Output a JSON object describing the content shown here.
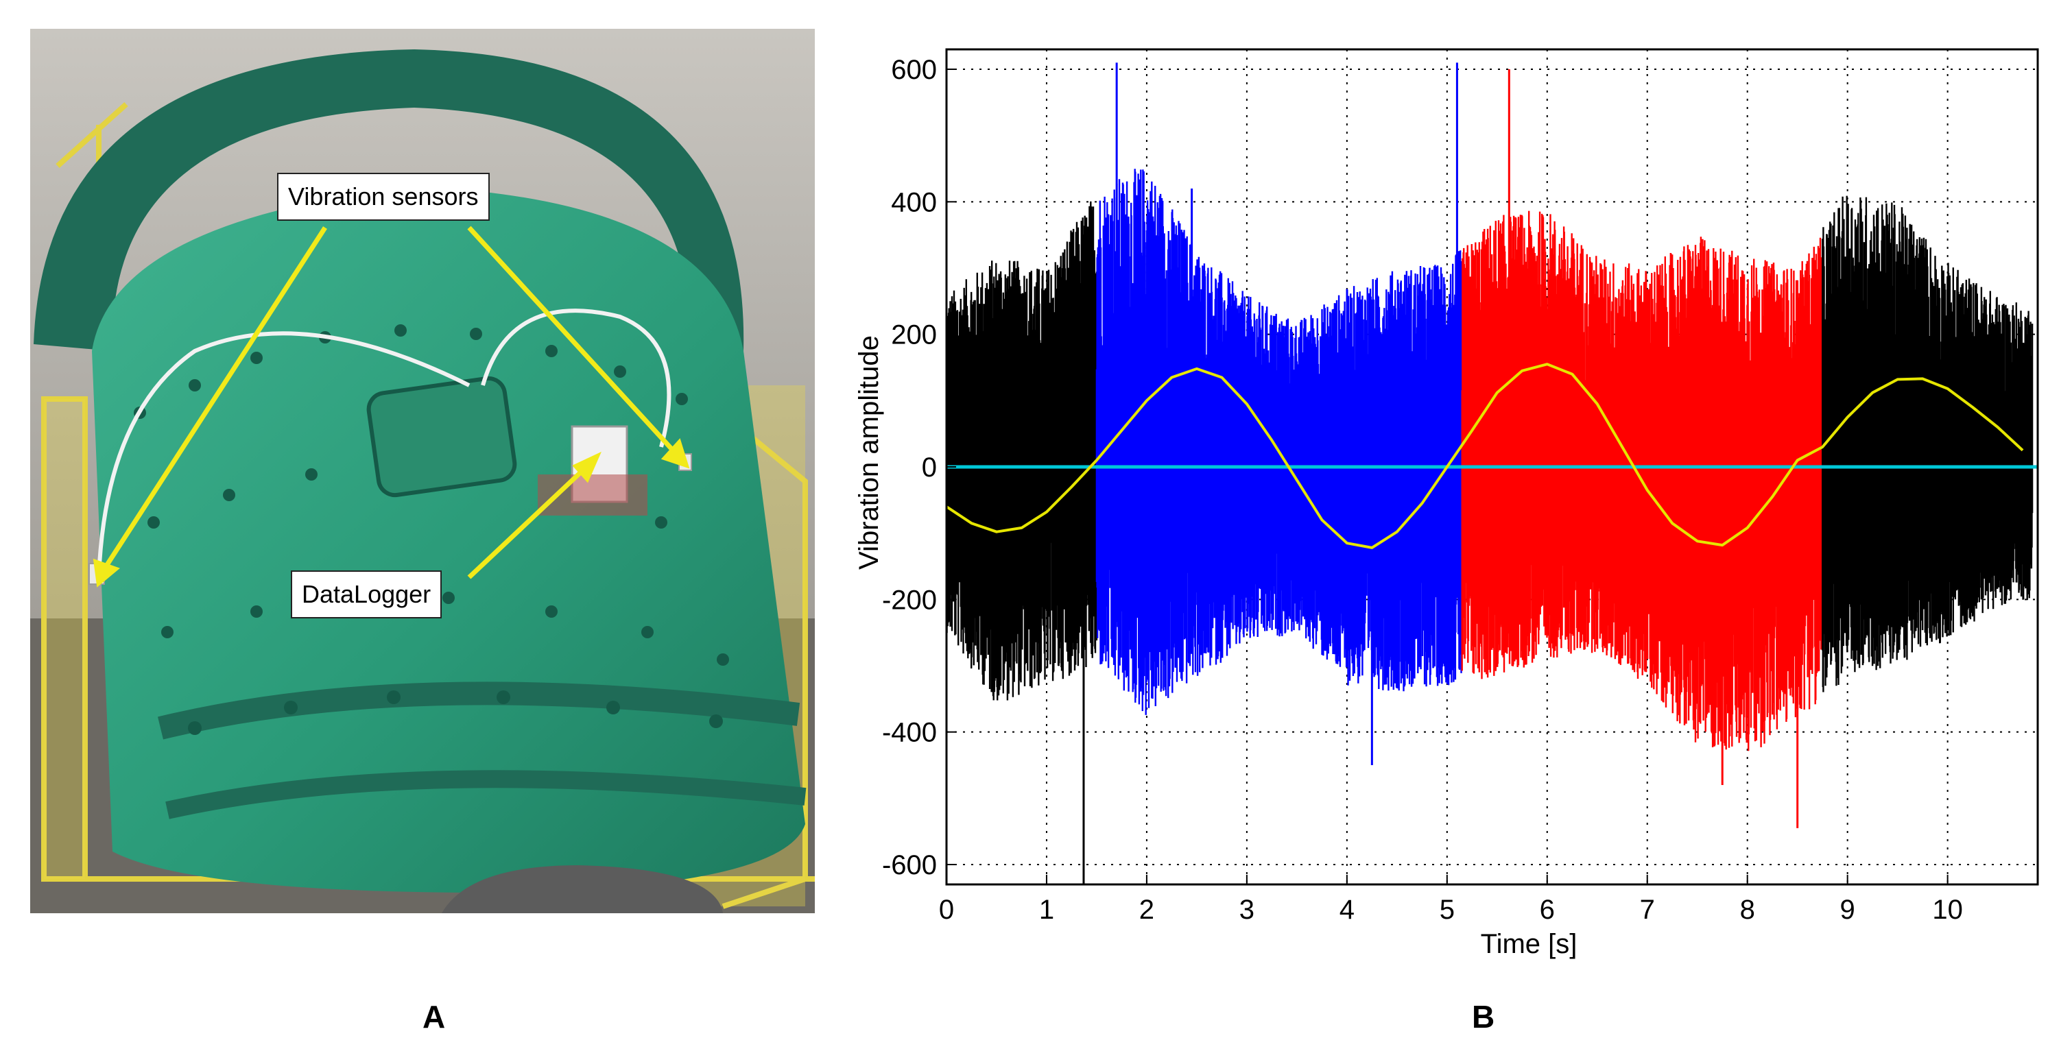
{
  "panel_labels": {
    "a": "A",
    "b": "B"
  },
  "photo": {
    "callouts": {
      "sensors": "Vibration sensors",
      "logger": "DataLogger"
    },
    "colors": {
      "mill": "#2e9e7e",
      "mill_dark": "#1f6b57",
      "ring": "#1f6b57",
      "arrow": "#f2ea1a",
      "rail": "#e3d341",
      "floor": "#6e6a64"
    }
  },
  "chart_data": {
    "type": "line",
    "xlabel": "Time [s]",
    "ylabel": "Vibration amplitude",
    "xlim": [
      0,
      10.9
    ],
    "ylim": [
      -630,
      630
    ],
    "xticks": [
      0,
      1,
      2,
      3,
      4,
      5,
      6,
      7,
      8,
      9,
      10
    ],
    "yticks": [
      600,
      400,
      200,
      0,
      -200,
      -400,
      -600
    ],
    "grid": true,
    "legend": "none",
    "segments": [
      {
        "color": "#000000",
        "x_range": [
          0,
          1.5
        ]
      },
      {
        "color": "#0000ff",
        "x_range": [
          1.5,
          5.15
        ]
      },
      {
        "color": "#ff0000",
        "x_range": [
          5.15,
          8.75
        ]
      },
      {
        "color": "#000000",
        "x_range": [
          8.75,
          10.85
        ]
      }
    ],
    "envelope_positive": {
      "x": [
        0,
        0.5,
        1.0,
        1.5,
        2.0,
        2.5,
        3.0,
        3.5,
        4.0,
        4.5,
        5.0,
        5.5,
        6.0,
        6.5,
        7.0,
        7.5,
        8.0,
        8.5,
        9.0,
        9.5,
        10.0,
        10.5,
        10.85
      ],
      "y": [
        260,
        320,
        300,
        420,
        460,
        330,
        260,
        220,
        270,
        300,
        310,
        380,
        390,
        320,
        300,
        350,
        320,
        300,
        420,
        400,
        310,
        260,
        240
      ]
    },
    "envelope_negative": {
      "x": [
        0,
        0.5,
        1.0,
        1.5,
        2.0,
        2.5,
        3.0,
        3.5,
        4.0,
        4.5,
        5.0,
        5.5,
        6.0,
        6.5,
        7.0,
        7.5,
        8.0,
        8.5,
        9.0,
        9.5,
        10.0,
        10.5,
        10.85
      ],
      "y": [
        -250,
        -360,
        -330,
        -300,
        -380,
        -320,
        -270,
        -250,
        -330,
        -340,
        -330,
        -320,
        -290,
        -280,
        -330,
        -420,
        -440,
        -380,
        -320,
        -300,
        -260,
        -210,
        -200
      ]
    },
    "spikes": [
      {
        "x": 1.37,
        "y": -630
      },
      {
        "x": 1.7,
        "y": 610
      },
      {
        "x": 2.45,
        "y": 420
      },
      {
        "x": 4.25,
        "y": -450
      },
      {
        "x": 5.1,
        "y": 610
      },
      {
        "x": 5.62,
        "y": 600
      },
      {
        "x": 7.75,
        "y": -480
      },
      {
        "x": 8.5,
        "y": -545
      }
    ],
    "yellow_series": {
      "color": "#e6e600",
      "x": [
        0,
        0.25,
        0.5,
        0.75,
        1.0,
        1.25,
        1.5,
        1.75,
        2.0,
        2.25,
        2.5,
        2.75,
        3.0,
        3.25,
        3.5,
        3.75,
        4.0,
        4.25,
        4.5,
        4.75,
        5.0,
        5.25,
        5.5,
        5.75,
        6.0,
        6.25,
        6.5,
        6.75,
        7.0,
        7.25,
        7.5,
        7.75,
        8.0,
        8.25,
        8.5,
        8.75,
        9.0,
        9.25,
        9.5,
        9.75,
        10.0,
        10.25,
        10.5,
        10.75
      ],
      "y": [
        -60,
        -85,
        -98,
        -92,
        -68,
        -30,
        10,
        55,
        100,
        135,
        148,
        135,
        95,
        40,
        -20,
        -80,
        -115,
        -122,
        -98,
        -55,
        0,
        55,
        112,
        145,
        155,
        140,
        95,
        30,
        -35,
        -85,
        -112,
        -118,
        -92,
        -45,
        10,
        30,
        75,
        112,
        132,
        133,
        118,
        90,
        60,
        25
      ]
    },
    "baseline": {
      "color": "#00c8d8",
      "y": 0
    }
  }
}
